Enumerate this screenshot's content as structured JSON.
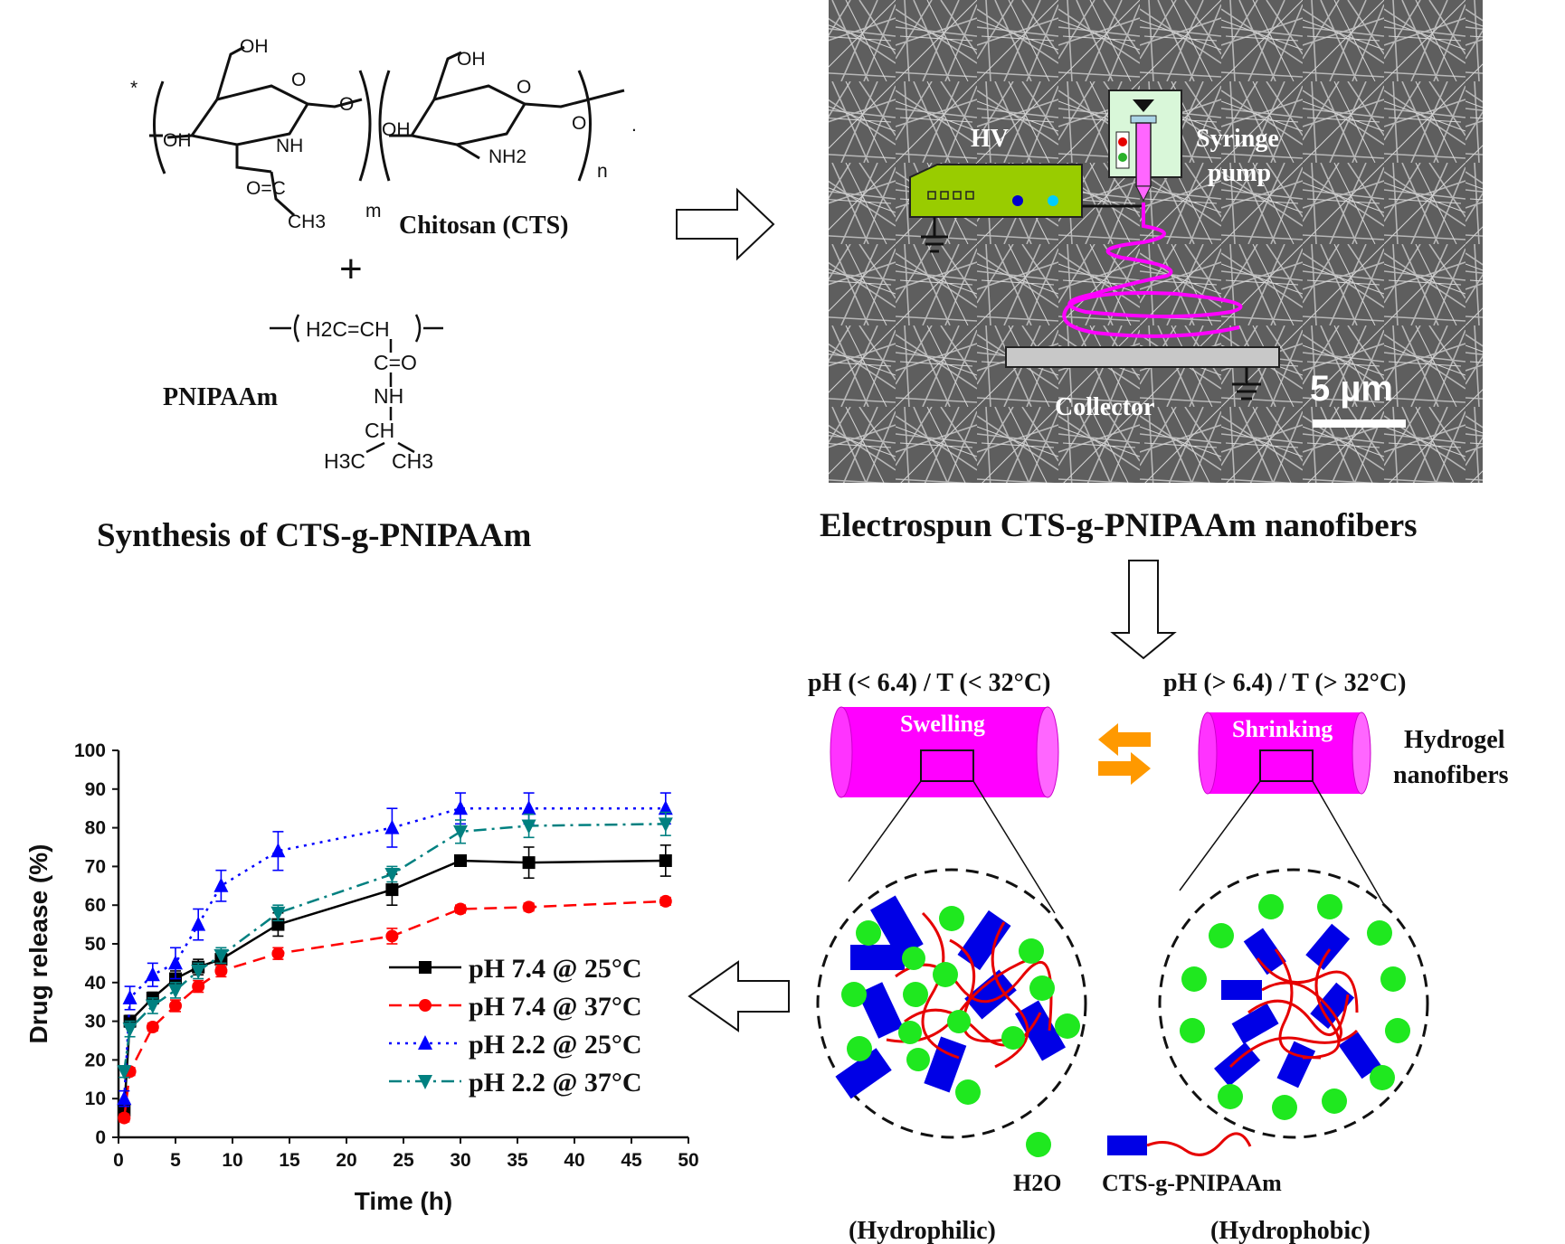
{
  "captions": {
    "synthesis": "Synthesis of CTS-g-PNIPAAm",
    "electrospun": "Electrospun CTS-g-PNIPAAm nanofibers"
  },
  "chemistry": {
    "chitosan_label": "Chitosan (CTS)",
    "pnipaam_label": "PNIPAAm",
    "plus": "+",
    "star": "*",
    "oh": "OH",
    "o": "O",
    "nh": "NH",
    "nh2": "NH2",
    "oc": "O=C",
    "ch3": "CH3",
    "m": "m",
    "n": "n",
    "h2c_ch": "H2C=CH",
    "c_o": "C=O",
    "ch": "CH",
    "h3c": "H3C",
    "dot": "."
  },
  "electrospinning": {
    "hv_label": "HV",
    "syringe_label": "Syringe",
    "pump_label": "pump",
    "collector_label": "Collector",
    "scale_label": "5 µm"
  },
  "conditions": {
    "left": "pH (< 6.4) / T (< 32°C)",
    "right": "pH (> 6.4) / T (> 32°C)",
    "swelling": "Swelling",
    "shrinking": "Shrinking",
    "hydrogel": "Hydrogel",
    "nanofibers": "nanofibers",
    "water": "H2O",
    "polymer": "CTS-g-PNIPAAm",
    "hydrophilic": "(Hydrophilic)",
    "hydrophobic": "(Hydrophobic)"
  },
  "colors": {
    "magenta": "#ff00ff",
    "green_dot": "#1fe81f",
    "blue_block": "#0000e6",
    "red_chain": "#e60000",
    "hv_box": "#99cc00",
    "orange_arrow": "#ff9900"
  },
  "chart_data": {
    "type": "line",
    "xlabel": "Time (h)",
    "ylabel": "Drug release (%)",
    "xlim": [
      0,
      50
    ],
    "ylim": [
      0,
      100
    ],
    "xticks": [
      0,
      5,
      10,
      15,
      20,
      25,
      30,
      35,
      40,
      45,
      50
    ],
    "yticks": [
      0,
      10,
      20,
      30,
      40,
      50,
      60,
      70,
      80,
      90,
      100
    ],
    "legend_position": "center-right",
    "series": [
      {
        "name": "pH 7.4 @ 25°C",
        "color": "#000000",
        "marker": "square",
        "dash": "solid",
        "x": [
          0.5,
          1,
          3,
          5,
          7,
          9,
          14,
          24,
          30,
          36,
          48
        ],
        "y": [
          7,
          30,
          36,
          41,
          44,
          46,
          55,
          64,
          71.5,
          71,
          71.5
        ],
        "err": [
          1,
          1.5,
          1.5,
          2,
          2,
          2,
          3,
          4,
          1,
          4,
          4
        ]
      },
      {
        "name": "pH 7.4 @ 37°C",
        "color": "#ff0000",
        "marker": "circle",
        "dash": "dashed",
        "x": [
          0.5,
          1,
          3,
          5,
          7,
          9,
          14,
          24,
          30,
          36,
          48
        ],
        "y": [
          5,
          17,
          28.5,
          34,
          39,
          43,
          47.5,
          52,
          59,
          59.5,
          61
        ],
        "err": [
          1,
          1,
          1,
          1.5,
          1.5,
          1.5,
          1.5,
          2,
          1,
          1,
          1
        ]
      },
      {
        "name": "pH 2.2 @ 25°C",
        "color": "#0000ff",
        "marker": "triangle-up",
        "dash": "dotted",
        "x": [
          0.5,
          1,
          3,
          5,
          7,
          9,
          14,
          24,
          30,
          36,
          48
        ],
        "y": [
          10,
          36,
          42,
          45,
          55,
          65,
          74,
          80,
          85,
          85,
          85
        ],
        "err": [
          2,
          3,
          3,
          4,
          4,
          4,
          5,
          5,
          4,
          4,
          4
        ]
      },
      {
        "name": "pH 2.2 @ 37°C",
        "color": "#008080",
        "marker": "triangle-down",
        "dash": "dash-dot",
        "x": [
          0.5,
          1,
          3,
          5,
          7,
          9,
          14,
          24,
          30,
          36,
          48
        ],
        "y": [
          17,
          28,
          34,
          38,
          43,
          47,
          58,
          68,
          79,
          80.5,
          81
        ],
        "err": [
          1.5,
          2,
          2,
          2,
          2,
          2,
          2,
          2,
          3,
          3,
          3
        ]
      }
    ]
  }
}
